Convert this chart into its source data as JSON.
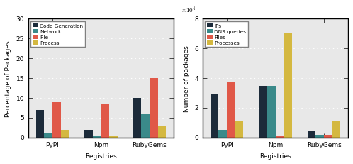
{
  "left": {
    "categories": [
      "PyPI",
      "Npm",
      "RubyGems"
    ],
    "series": {
      "Code Generation": [
        7,
        2,
        10
      ],
      "Network": [
        1,
        0.3,
        6
      ],
      "File": [
        9,
        8.5,
        15
      ],
      "Process": [
        2,
        0.3,
        3
      ]
    },
    "colors": [
      "#1c2b3a",
      "#3a8a8a",
      "#e05848",
      "#d4b840"
    ],
    "ylabel": "Percentage of Packages",
    "xlabel": "Registries",
    "ylim": [
      0,
      30
    ],
    "yticks": [
      0,
      5,
      10,
      15,
      20,
      25,
      30
    ]
  },
  "right": {
    "categories": [
      "PyPI",
      "Npm",
      "RubyGems"
    ],
    "series": {
      "IPs": [
        29000,
        35000,
        4000
      ],
      "DNS queries": [
        5000,
        35000,
        2000
      ],
      "Files": [
        37000,
        1500,
        1800
      ],
      "Processes": [
        11000,
        70000,
        11000
      ]
    },
    "colors": [
      "#1c2b3a",
      "#3a8a8a",
      "#e05848",
      "#d4b840"
    ],
    "ylabel": "Number of packages",
    "xlabel": "Registries",
    "ylim": [
      0,
      80000
    ],
    "yticks": [
      0,
      20000,
      40000,
      60000,
      80000
    ],
    "scale": 10000
  }
}
